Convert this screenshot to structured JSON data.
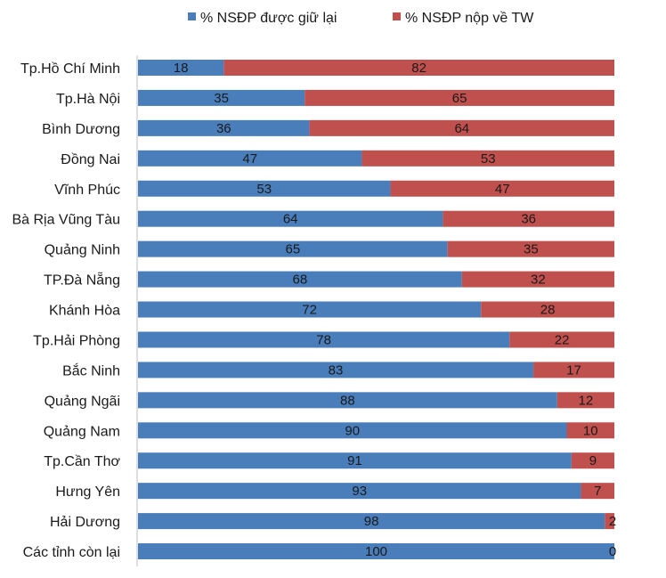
{
  "chart_data": {
    "type": "bar",
    "orientation": "horizontal",
    "stacked": true,
    "categories": [
      "Tp.Hồ Chí Minh",
      "Tp.Hà Nội",
      "Bình Dương",
      "Đồng Nai",
      "Vĩnh Phúc",
      "Bà Rịa Vũng Tàu",
      "Quảng Ninh",
      "TP.Đà Nẵng",
      "Khánh Hòa",
      "Tp.Hải Phòng",
      "Bắc Ninh",
      "Quảng Ngãi",
      "Quảng Nam",
      "Tp.Cần Thơ",
      "Hưng Yên",
      "Hải Dương",
      "Các tỉnh còn lại"
    ],
    "series": [
      {
        "name": "% NSĐP được giữ lại",
        "color": "#4a7ebb",
        "values": [
          18,
          35,
          36,
          47,
          53,
          64,
          65,
          68,
          72,
          78,
          83,
          88,
          90,
          91,
          93,
          98,
          100
        ]
      },
      {
        "name": "% NSĐP nộp về TW",
        "color": "#c0504d",
        "values": [
          82,
          65,
          64,
          53,
          47,
          36,
          35,
          32,
          28,
          22,
          17,
          12,
          10,
          9,
          7,
          2,
          0
        ]
      }
    ],
    "xlim": [
      0,
      100
    ],
    "grid": false,
    "legend_position": "top"
  }
}
